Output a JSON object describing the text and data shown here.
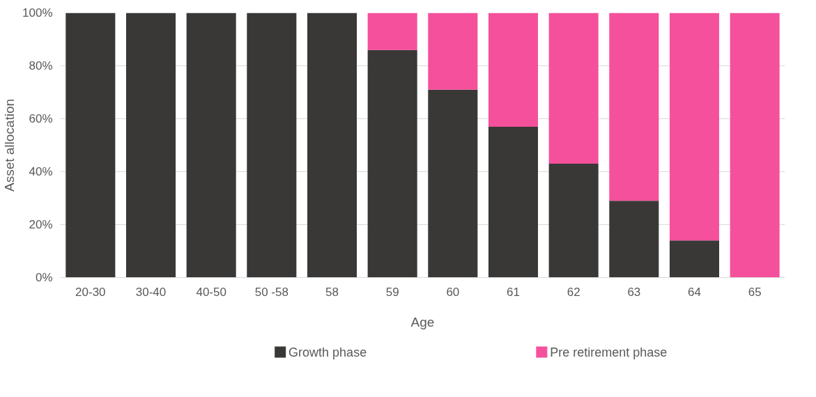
{
  "chart_data": {
    "type": "bar",
    "stacked": true,
    "xlabel": "Age",
    "ylabel": "Asset allocation",
    "categories": [
      "20-30",
      "30-40",
      "40-50",
      "50 -58",
      "58",
      "59",
      "60",
      "61",
      "62",
      "63",
      "64",
      "65"
    ],
    "series": [
      {
        "name": "Growth phase",
        "color": "#393837",
        "values": [
          100,
          100,
          100,
          100,
          100,
          86,
          71,
          57,
          43,
          29,
          14,
          0
        ]
      },
      {
        "name": "Pre retirement phase",
        "color": "#f5509b",
        "values": [
          0,
          0,
          0,
          0,
          0,
          14,
          29,
          43,
          57,
          71,
          86,
          100
        ]
      }
    ],
    "ylim": [
      0,
      100
    ],
    "yticks": [
      {
        "value": 0,
        "label": "0%"
      },
      {
        "value": 20,
        "label": "20%"
      },
      {
        "value": 40,
        "label": "40%"
      },
      {
        "value": 60,
        "label": "60%"
      },
      {
        "value": 80,
        "label": "80%"
      },
      {
        "value": 100,
        "label": "100%"
      }
    ],
    "grid": "y",
    "legend": "bottom"
  }
}
